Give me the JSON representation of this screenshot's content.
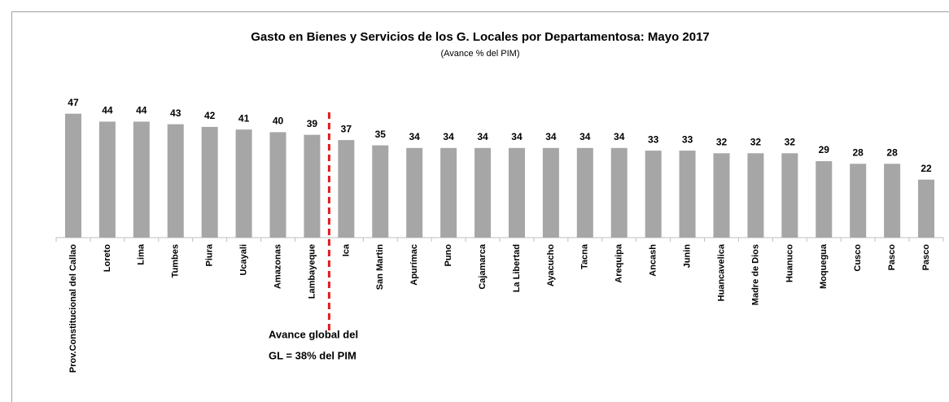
{
  "chart_data": {
    "type": "bar",
    "title": "Gasto  en Bienes y Servicios de los G. Locales por Departamentosa:   Mayo  2017",
    "subtitle": "(Avance % del PIM)",
    "categories": [
      "Prov.Constitucional del Callao",
      "Loreto",
      "Lima",
      "Tumbes",
      "Piura",
      "Ucayali",
      "Amazonas",
      "Lambayeque",
      "Ica",
      "San Martin",
      "Apurímac",
      "Puno",
      "Cajamarca",
      "La Libertad",
      "Ayacucho",
      "Tacna",
      "Arequipa",
      "Ancash",
      "Junin",
      "Huancavelica",
      "Madre de Dios",
      "Huanuco",
      "Moquegua",
      "Cusco",
      "Pasco",
      "Pasco"
    ],
    "values": [
      47,
      44,
      44,
      43,
      42,
      41,
      40,
      39,
      37,
      35,
      34,
      34,
      34,
      34,
      34,
      34,
      34,
      33,
      33,
      32,
      32,
      32,
      29,
      28,
      28,
      22
    ],
    "color": "#a6a6a6",
    "ylim": [
      0,
      50
    ],
    "annotation": [
      "Avance global del",
      "GL = 38% del PIM"
    ],
    "annotation_color": "#e31a1c"
  }
}
